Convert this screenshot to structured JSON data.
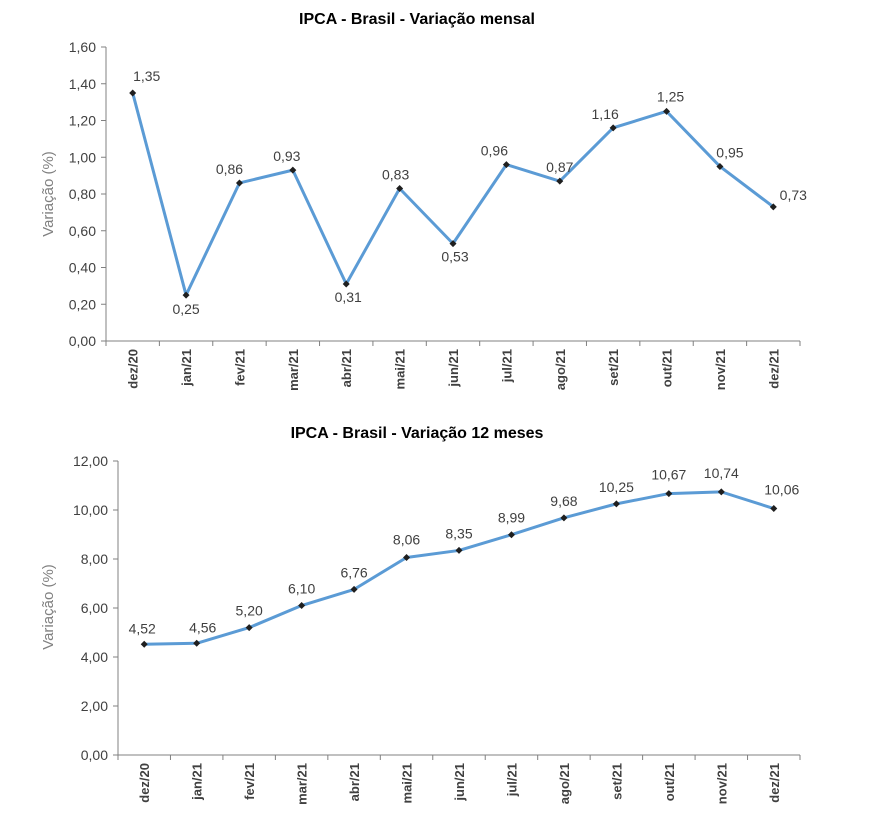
{
  "chart_data": [
    {
      "type": "line",
      "title": "IPCA - Brasil - Variação mensal",
      "xlabel": "",
      "ylabel": "Variação (%)",
      "categories": [
        "dez/20",
        "jan/21",
        "fev/21",
        "mar/21",
        "abr/21",
        "mai/21",
        "jun/21",
        "jul/21",
        "ago/21",
        "set/21",
        "out/21",
        "nov/21",
        "dez/21"
      ],
      "values": [
        1.35,
        0.25,
        0.86,
        0.93,
        0.31,
        0.83,
        0.53,
        0.96,
        0.87,
        1.16,
        1.25,
        0.95,
        0.73
      ],
      "labels": [
        "1,35",
        "0,25",
        "0,86",
        "0,93",
        "0,31",
        "0,83",
        "0,53",
        "0,96",
        "0,87",
        "1,16",
        "1,25",
        "0,95",
        "0,73"
      ],
      "ylim": [
        0,
        1.6
      ],
      "yticks": [
        "0,00",
        "0,20",
        "0,40",
        "0,60",
        "0,80",
        "1,00",
        "1,20",
        "1,40",
        "1,60"
      ],
      "grid": false,
      "series_color": "#5b9bd5"
    },
    {
      "type": "line",
      "title": "IPCA - Brasil - Variação 12 meses",
      "xlabel": "",
      "ylabel": "Variação (%)",
      "categories": [
        "dez/20",
        "jan/21",
        "fev/21",
        "mar/21",
        "abr/21",
        "mai/21",
        "jun/21",
        "jul/21",
        "ago/21",
        "set/21",
        "out/21",
        "nov/21",
        "dez/21"
      ],
      "values": [
        4.52,
        4.56,
        5.2,
        6.1,
        6.76,
        8.06,
        8.35,
        8.99,
        9.68,
        10.25,
        10.67,
        10.74,
        10.06
      ],
      "labels": [
        "4,52",
        "4,56",
        "5,20",
        "6,10",
        "6,76",
        "8,06",
        "8,35",
        "8,99",
        "9,68",
        "10,25",
        "10,67",
        "10,74",
        "10,06"
      ],
      "ylim": [
        0,
        12
      ],
      "yticks": [
        "0,00",
        "2,00",
        "4,00",
        "6,00",
        "8,00",
        "10,00",
        "12,00"
      ],
      "grid": false,
      "series_color": "#5b9bd5"
    }
  ]
}
